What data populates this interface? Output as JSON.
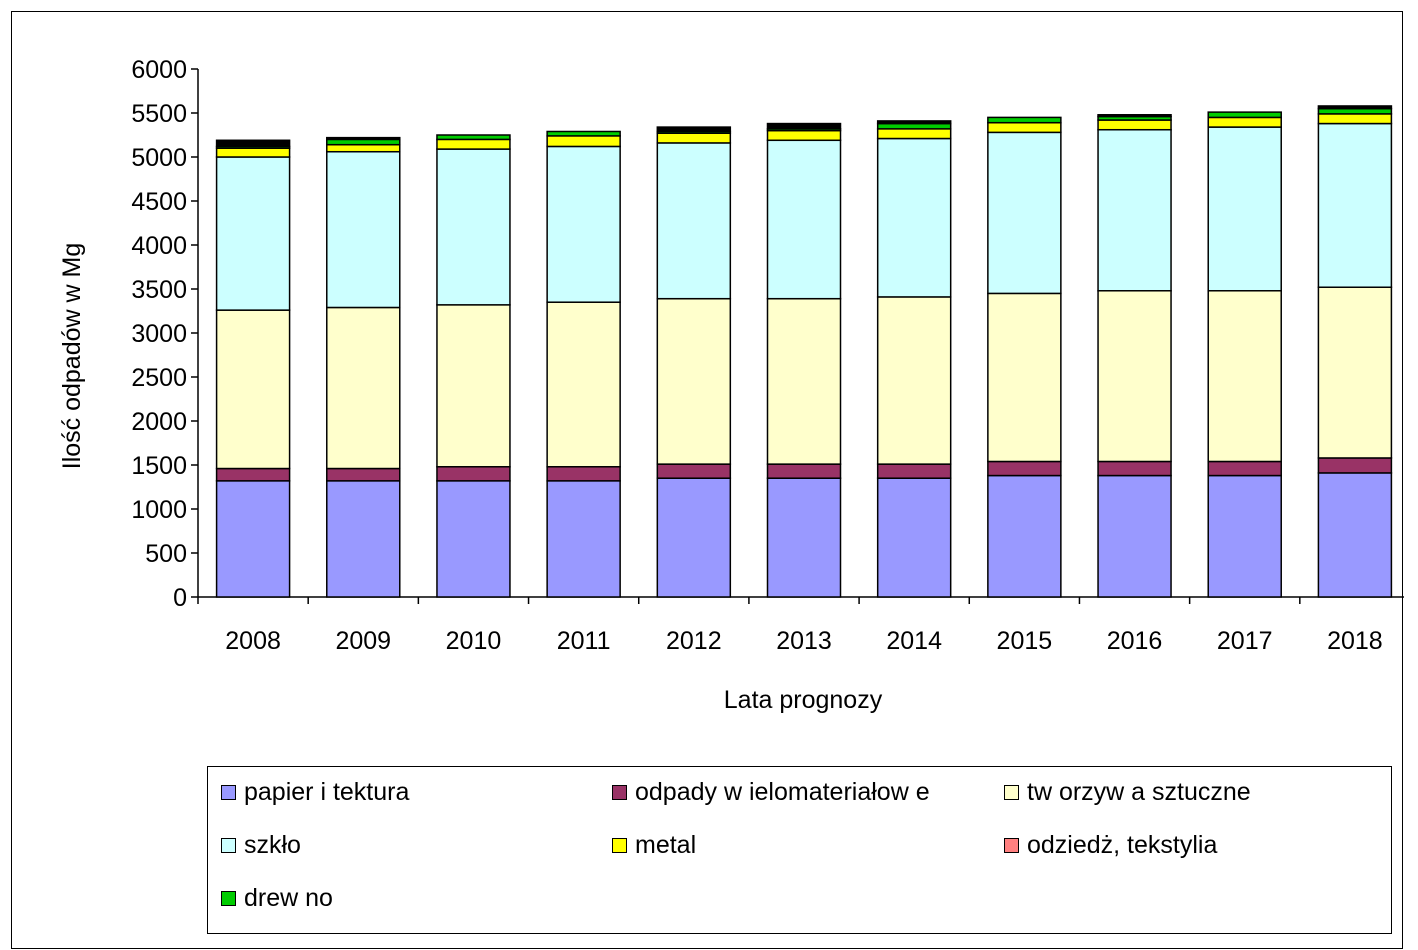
{
  "chart_data": {
    "type": "bar",
    "stacked": true,
    "categories": [
      "2008",
      "2009",
      "2010",
      "2011",
      "2012",
      "2013",
      "2014",
      "2015",
      "2016",
      "2017",
      "2018"
    ],
    "xlabel": "Lata prognozy",
    "ylabel": "Ilość odpadów w Mg",
    "ylim": [
      0,
      6000
    ],
    "yticks": [
      "0",
      "500",
      "1000",
      "1500",
      "2000",
      "2500",
      "3000",
      "3500",
      "4000",
      "4500",
      "5000",
      "5500",
      "6000"
    ],
    "legend_position": "bottom",
    "grid": false,
    "series": [
      {
        "name": "papier i tektura",
        "color": "#9999ff",
        "values": [
          1320,
          1320,
          1320,
          1320,
          1350,
          1350,
          1350,
          1380,
          1380,
          1380,
          1410
        ]
      },
      {
        "name": "odpady w ielomateriałow e",
        "color": "#993366",
        "values": [
          140,
          140,
          160,
          160,
          160,
          160,
          160,
          160,
          160,
          160,
          170
        ]
      },
      {
        "name": "tw orzyw a sztuczne",
        "color": "#ffffcc",
        "values": [
          1800,
          1830,
          1840,
          1870,
          1880,
          1880,
          1900,
          1910,
          1940,
          1940,
          1940
        ]
      },
      {
        "name": "szkło",
        "color": "#ccffff",
        "values": [
          1740,
          1770,
          1770,
          1770,
          1770,
          1800,
          1800,
          1830,
          1830,
          1860,
          1860
        ]
      },
      {
        "name": "metal",
        "color": "#ffff00",
        "values": [
          100,
          80,
          110,
          120,
          110,
          110,
          110,
          110,
          110,
          110,
          110
        ]
      },
      {
        "name": "odziedż, tekstylia",
        "color": "#ff8080",
        "values": [
          0,
          0,
          0,
          0,
          0,
          0,
          0,
          0,
          0,
          0,
          0
        ]
      },
      {
        "name": "drew no",
        "color": "#00cc00",
        "values": [
          20,
          60,
          50,
          50,
          20,
          20,
          60,
          60,
          40,
          60,
          60
        ]
      },
      {
        "name": "",
        "color": "#000000",
        "values": [
          70,
          20,
          0,
          0,
          50,
          60,
          30,
          0,
          20,
          0,
          30
        ]
      }
    ]
  }
}
